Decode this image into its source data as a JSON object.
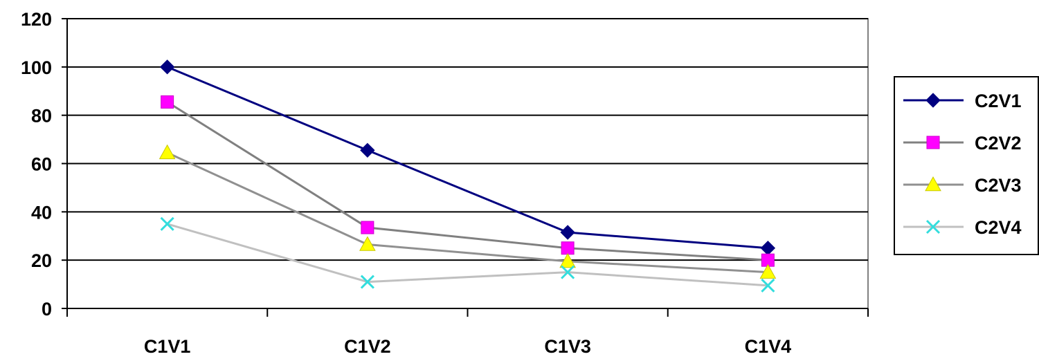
{
  "chart_data": {
    "type": "line",
    "title": "",
    "xlabel": "",
    "ylabel": "",
    "categories": [
      "C1V1",
      "C1V2",
      "C1V3",
      "C1V4"
    ],
    "ylim": [
      0,
      120
    ],
    "yticks": [
      0,
      20,
      40,
      60,
      80,
      100,
      120
    ],
    "grid": true,
    "legend_position": "right",
    "series": [
      {
        "name": "C2V1",
        "values": [
          100,
          65.5,
          31.5,
          25
        ],
        "marker": "diamond",
        "line_color": "#000080",
        "marker_color": "#000080"
      },
      {
        "name": "C2V2",
        "values": [
          85.5,
          33.5,
          25,
          20
        ],
        "marker": "square",
        "line_color": "#808080",
        "marker_color": "#ff00ff"
      },
      {
        "name": "C2V3",
        "values": [
          64.5,
          26.5,
          19.5,
          15
        ],
        "marker": "triangle",
        "line_color": "#909090",
        "marker_color": "#ffff00"
      },
      {
        "name": "C2V4",
        "values": [
          35,
          11,
          15,
          9.5
        ],
        "marker": "x",
        "line_color": "#c0c0c0",
        "marker_color": "#33dddd"
      }
    ]
  }
}
